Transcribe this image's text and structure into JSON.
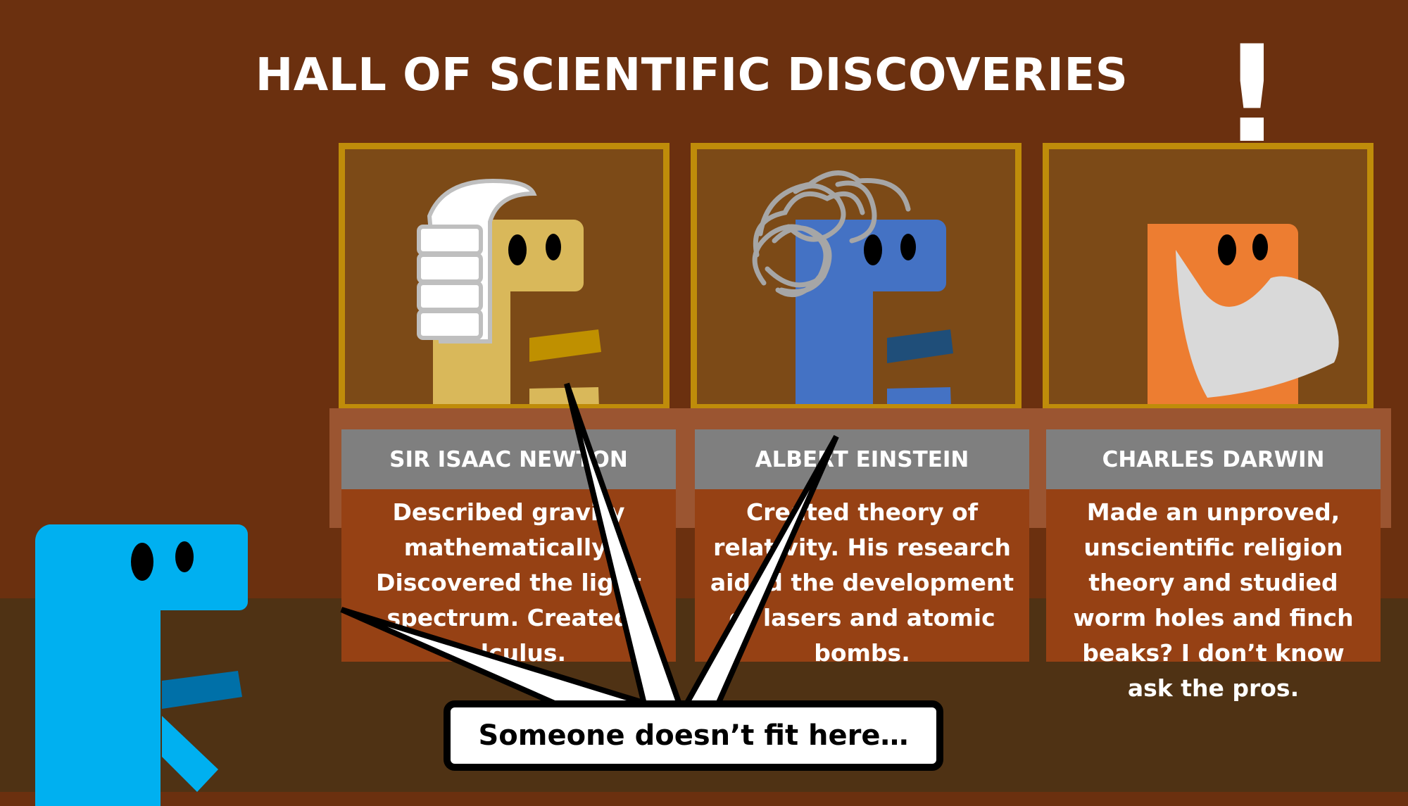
{
  "hall_title": "HALL OF SCIENTIFIC DISCOVERIES",
  "alert_mark": "!",
  "exhibits": [
    {
      "name": "SIR ISAAC NEWTON",
      "description": "Described gravity mathematically. Discovered the light spectrum. Created calculus."
    },
    {
      "name": "ALBERT EINSTEIN",
      "description": "Created theory of relativity. His research aided the development of lasers and atomic bombs."
    },
    {
      "name": "CHARLES DARWIN",
      "description": "Made an unproved, unscientific religion theory and studied worm holes and finch beaks? I don’t know ask the pros."
    }
  ],
  "speech_bubble": "Someone doesn’t fit here…",
  "colors": {
    "wall": "#6b300f",
    "floor": "#4f3214",
    "case_frame": "#bf8c0a",
    "newton_dino": "#d9b85a",
    "einstein_dino": "#4472c4",
    "darwin_dino": "#ed7d31",
    "visitor_dino": "#00b0f0"
  }
}
